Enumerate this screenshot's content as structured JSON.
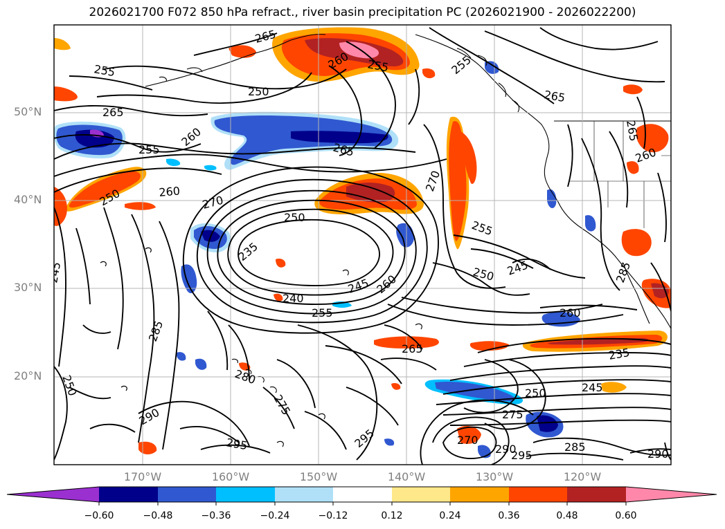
{
  "title": "2026021700 F072 850 hPa refract., river basin precipitation PC (2026021900 - 2026022200)",
  "lat_labels": [
    "50°N",
    "40°N",
    "30°N",
    "20°N"
  ],
  "lon_labels": [
    "170°W",
    "160°W",
    "150°W",
    "140°W",
    "130°W",
    "120°W"
  ],
  "colorbar": {
    "labels": [
      "−0.60",
      "−0.48",
      "−0.36",
      "−0.24",
      "−0.12",
      "0.12",
      "0.24",
      "0.36",
      "0.48",
      "0.60"
    ],
    "colors": [
      "#9b30d0",
      "#00008b",
      "#3058d0",
      "#00bfff",
      "#b0e0f8",
      "#ffffff",
      "#ffe88a",
      "#ffa500",
      "#ff4500",
      "#b22222",
      "#ff88aa"
    ]
  },
  "contour_labels": [
    "265",
    "255",
    "250",
    "260",
    "255",
    "265",
    "265",
    "265",
    "255",
    "260",
    "260",
    "250",
    "270",
    "250",
    "270",
    "235",
    "245",
    "240",
    "255",
    "245",
    "260",
    "285",
    "285",
    "250",
    "265",
    "255",
    "250",
    "245",
    "260",
    "235",
    "245",
    "250",
    "275",
    "275",
    "290",
    "295",
    "295",
    "270",
    "290",
    "295",
    "285",
    "290",
    "280",
    "265",
    "260",
    "255"
  ]
}
